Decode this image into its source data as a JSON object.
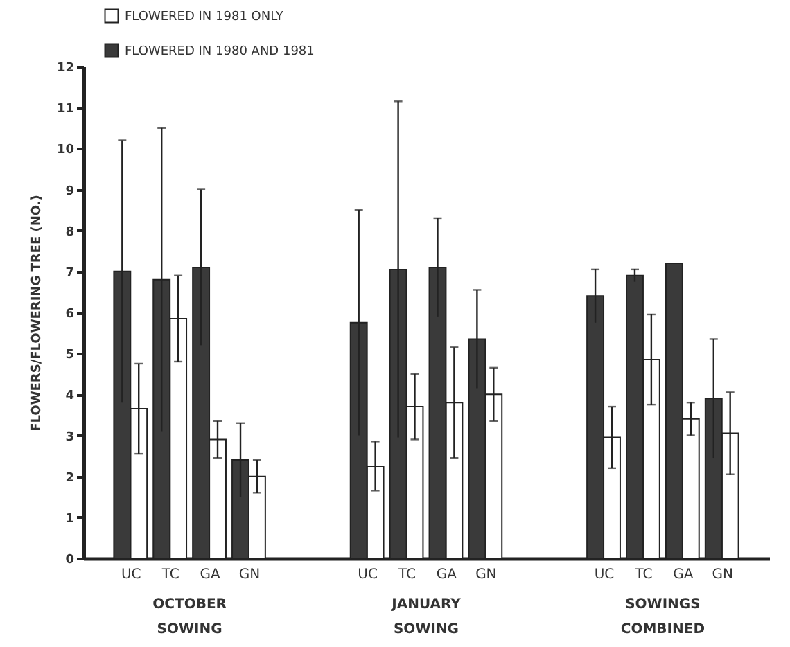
{
  "chart_data": {
    "type": "bar",
    "ylabel": "FLOWERS/FLOWERING TREE (NO.)",
    "categories": [
      "UC",
      "TC",
      "GA",
      "GN",
      "UC",
      "TC",
      "GA",
      "GN",
      "UC",
      "TC",
      "GA",
      "GN"
    ],
    "series": [
      {
        "name": "FLOWERED IN 1981 ONLY",
        "color": "#ffffff",
        "values": [
          3.65,
          5.85,
          2.9,
          2.0,
          2.25,
          3.7,
          3.8,
          4.0,
          2.95,
          4.85,
          3.4,
          3.05
        ],
        "errors": [
          1.1,
          1.05,
          0.45,
          0.4,
          0.6,
          0.8,
          1.35,
          0.65,
          0.75,
          1.1,
          0.4,
          1.0
        ]
      },
      {
        "name": "FLOWERED IN 1980 AND 1981",
        "color": "#3a3a3a",
        "values": [
          7.0,
          6.8,
          7.1,
          2.4,
          5.75,
          7.05,
          7.1,
          5.35,
          6.4,
          6.9,
          7.2,
          3.9
        ],
        "errors": [
          3.2,
          3.7,
          1.9,
          0.9,
          2.75,
          4.1,
          1.2,
          1.2,
          0.65,
          0.15,
          null,
          1.45
        ]
      }
    ],
    "annotations": [
      "OCTOBER SOWING",
      "JANUARY SOWING",
      "SOWINGS COMBINED"
    ],
    "ylim": [
      0,
      12
    ],
    "yticks": [
      0,
      1,
      2,
      3,
      4,
      5,
      6,
      7,
      8,
      9,
      10,
      11,
      12
    ],
    "grid": false,
    "legend": "top left"
  }
}
